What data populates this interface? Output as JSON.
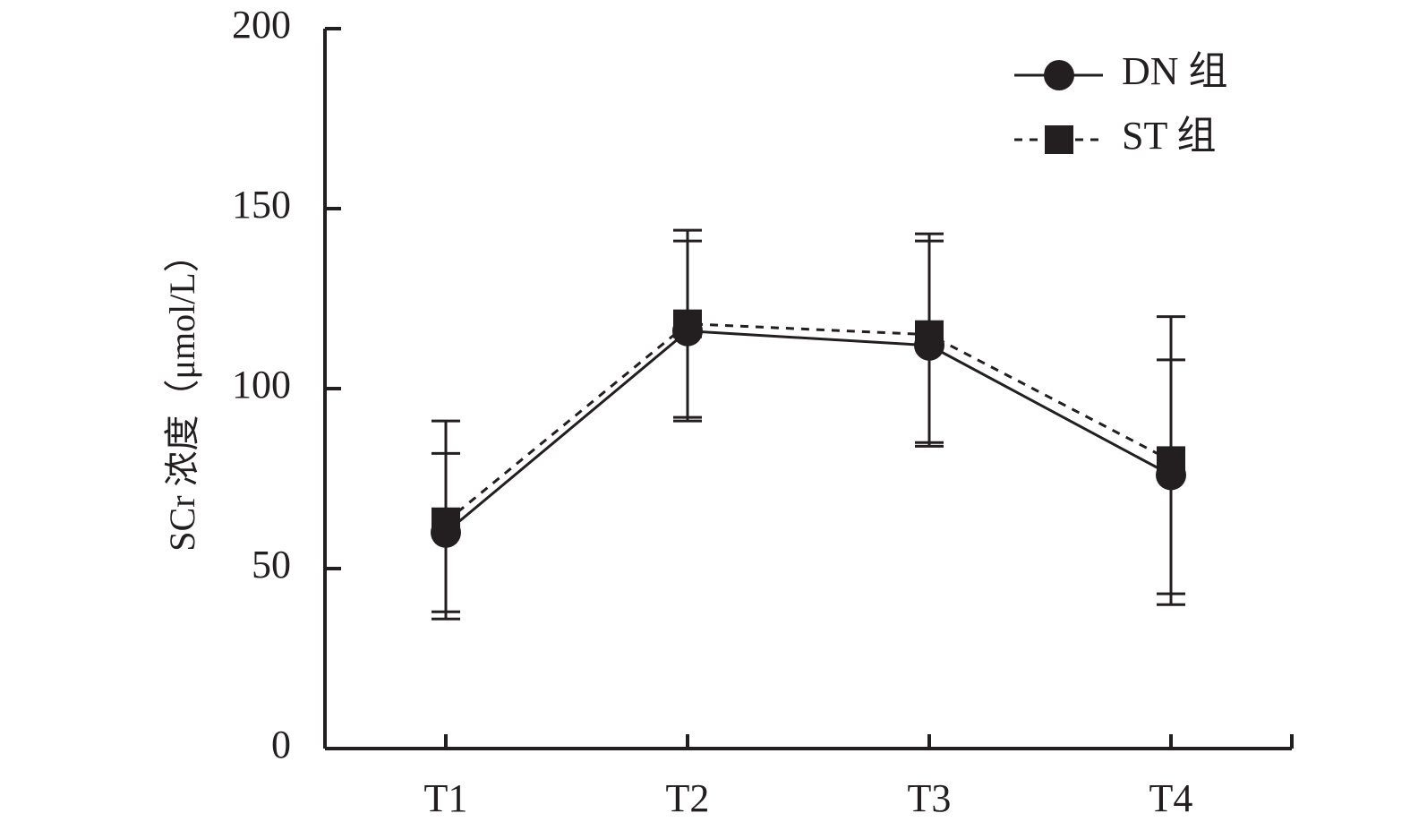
{
  "chart_data": {
    "type": "line",
    "title": "",
    "xlabel": "",
    "ylabel": "SCr 浓度（μmol/L）",
    "ylim": [
      0,
      200
    ],
    "yticks": [
      "0",
      "50",
      "100",
      "150",
      "200"
    ],
    "categories": [
      "T1",
      "T2",
      "T3",
      "T4"
    ],
    "grid": false,
    "legend_position": "top-right",
    "series": [
      {
        "name": "DN 组",
        "marker": "circle",
        "line_style": "solid",
        "values": [
          60,
          116,
          112,
          76
        ],
        "error_low": [
          38,
          92,
          85,
          40
        ],
        "error_high": [
          82,
          141,
          141,
          108
        ]
      },
      {
        "name": "ST 组",
        "marker": "square",
        "line_style": "dashed",
        "values": [
          63,
          118,
          115,
          80
        ],
        "error_low": [
          36,
          91,
          84,
          43
        ],
        "error_high": [
          91,
          144,
          143,
          120
        ]
      }
    ],
    "colors": {
      "ink": "#231f20",
      "background": "#ffffff"
    }
  }
}
